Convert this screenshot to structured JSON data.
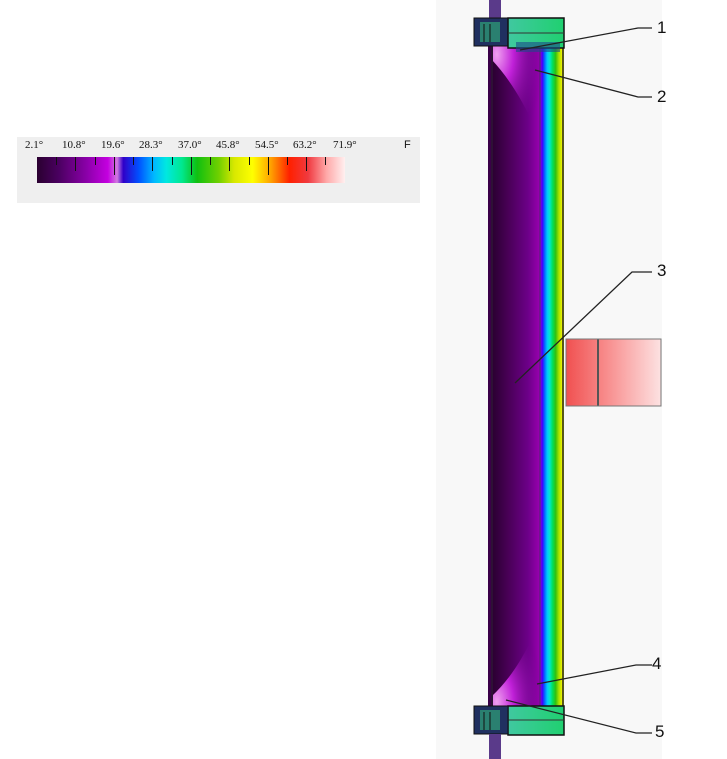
{
  "legend": {
    "ticks": [
      "2.1°",
      "10.8°",
      "19.6°",
      "28.3°",
      "37.0°",
      "45.8°",
      "54.5°",
      "63.2°",
      "71.9°"
    ],
    "unit": "F"
  },
  "callouts": [
    "1",
    "2",
    "3",
    "4",
    "5"
  ]
}
